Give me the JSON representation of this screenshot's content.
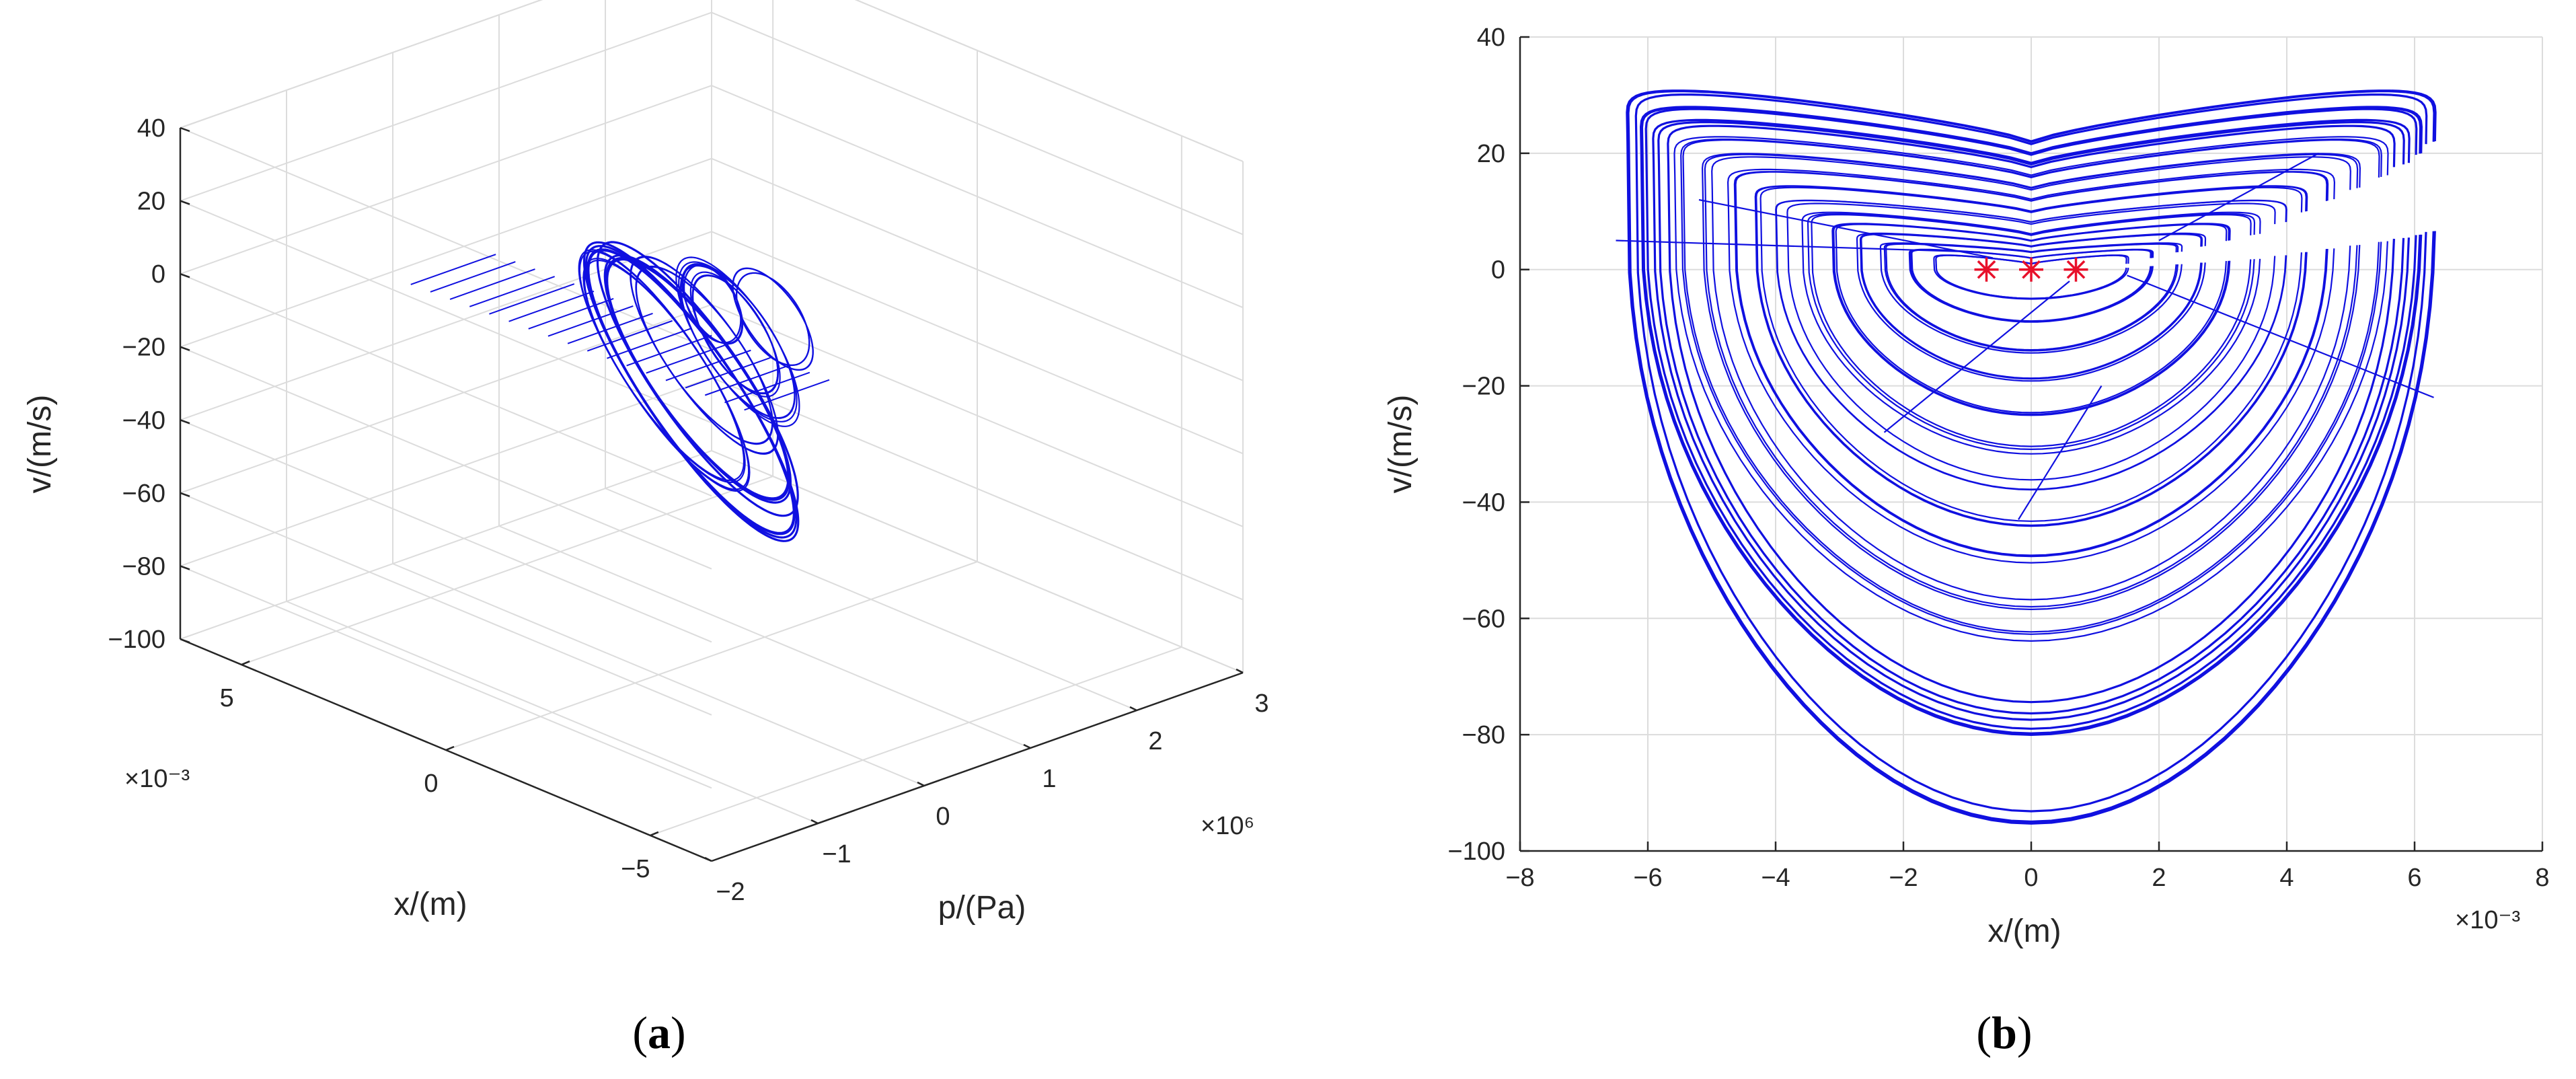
{
  "chart_data": [
    {
      "panel": "(a)",
      "type": "line",
      "projection": "3d",
      "title": "",
      "xlabel": "x/(m)",
      "ylabel": "p/(Pa)",
      "zlabel": "v/(m/s)",
      "x_ticks": [
        5,
        0,
        -5
      ],
      "x_tick_labels": [
        "5",
        "0",
        "−5"
      ],
      "x_exponent": "×10⁻³",
      "y_ticks": [
        -2,
        -1,
        0,
        1,
        2,
        3
      ],
      "y_tick_labels": [
        "−2",
        "−1",
        "0",
        "1",
        "2",
        "3"
      ],
      "y_exponent": "×10⁶",
      "z_ticks": [
        40,
        20,
        0,
        -20,
        -40,
        -60,
        -80,
        -100
      ],
      "z_tick_labels": [
        "40",
        "20",
        "0",
        "−20",
        "−40",
        "−60",
        "−80",
        "−100"
      ],
      "xlim": [
        -6.5,
        6.5
      ],
      "ylim": [
        -2,
        3
      ],
      "zlim": [
        -100,
        40
      ],
      "grid": true,
      "series_color": "#1010e0",
      "orbit_trace": {
        "x_center": [
          0.5,
          0.6,
          0.9,
          0.7,
          0.4,
          0.2,
          -0.2,
          0.5
        ],
        "x_half_width": [
          6.2,
          5.8,
          5.2,
          4.6,
          3.9,
          3.3,
          2.9,
          2.4
        ],
        "p_center": [
          0.5,
          0.6,
          0.4,
          0.7,
          0.9,
          0.8,
          1.0,
          0.7
        ],
        "p_half_width": [
          1.55,
          1.45,
          1.35,
          1.2,
          1.05,
          0.95,
          0.85,
          0.75
        ],
        "v_center": [
          -30,
          -28,
          -25,
          -23,
          -20,
          -16,
          -12,
          -8
        ],
        "v_half_height": [
          64,
          60,
          55,
          48,
          42,
          35,
          28,
          22
        ]
      }
    },
    {
      "panel": "(b)",
      "type": "line",
      "title": "",
      "xlabel": "x/(m)",
      "ylabel": "v/(m/s)",
      "x_ticks": [
        -8,
        -6,
        -4,
        -2,
        0,
        2,
        4,
        6,
        8
      ],
      "x_tick_labels": [
        "−8",
        "−6",
        "−4",
        "−2",
        "0",
        "2",
        "4",
        "6",
        "8"
      ],
      "x_exponent": "×10⁻³",
      "y_ticks": [
        40,
        20,
        0,
        -20,
        -40,
        -60,
        -80,
        -100
      ],
      "y_tick_labels": [
        "40",
        "20",
        "0",
        "−20",
        "−40",
        "−60",
        "−80",
        "−100"
      ],
      "xlim": [
        -8,
        8
      ],
      "ylim": [
        -100,
        40
      ],
      "grid": true,
      "series_color": "#1010e0",
      "equilibria": {
        "x": [
          -0.7,
          0,
          0.7
        ],
        "v": [
          0,
          0,
          0
        ],
        "color": "#e8102a",
        "marker": "asterisk"
      },
      "orbit_trace": {
        "x_half_width": [
          6.3,
          6.1,
          5.8,
          5.5,
          5.1,
          4.7,
          4.3,
          3.9,
          3.5,
          3.1,
          2.7,
          2.3,
          1.9,
          1.5
        ],
        "v_top": [
          34,
          31,
          28,
          25,
          22,
          19,
          16,
          13,
          11,
          9,
          7,
          5,
          4,
          3
        ],
        "v_bottom": [
          -95,
          -80,
          -76,
          -63,
          -58,
          -50,
          -44,
          -37,
          -31,
          -25,
          -19,
          -14,
          -9,
          -5
        ],
        "v_dip": [
          22,
          20,
          18,
          16,
          14,
          12,
          10,
          8,
          6,
          5,
          4,
          3,
          2,
          1
        ]
      }
    }
  ],
  "captions": {
    "a": "a",
    "b": "b"
  }
}
